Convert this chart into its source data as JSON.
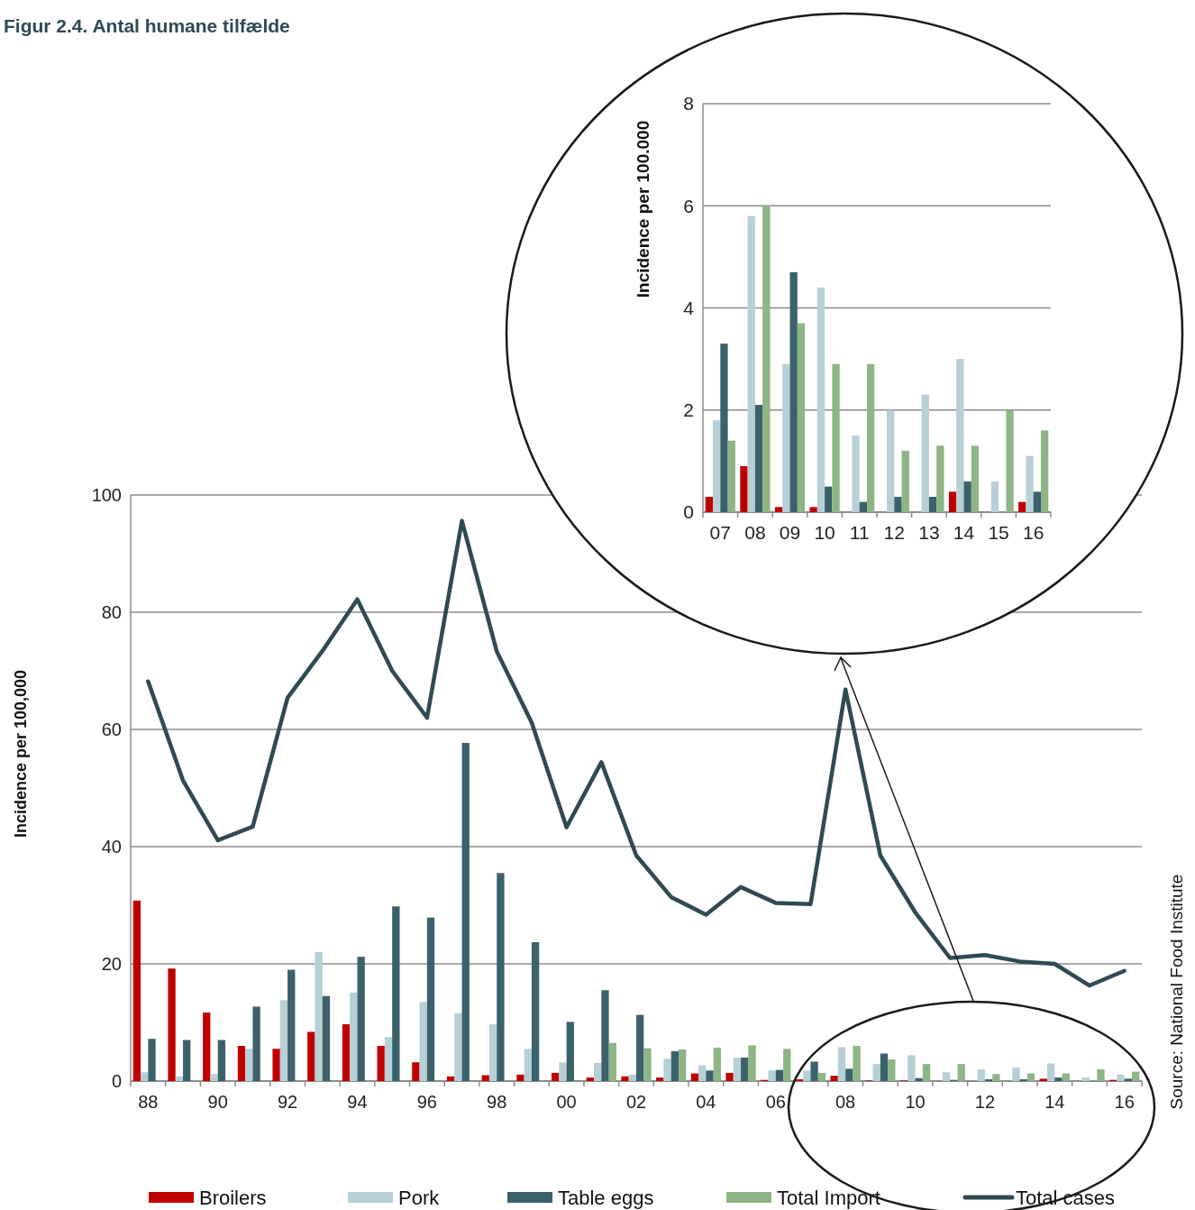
{
  "chart_data": [
    {
      "type": "bar",
      "title": "Figur 2.4. Antal humane tilfælde",
      "ylabel": "Incidence per 100,000",
      "annotations": [
        "Source: National Food Institute"
      ],
      "categories": [
        "88",
        null,
        "90",
        null,
        "92",
        null,
        "94",
        null,
        "96",
        null,
        "98",
        null,
        "00",
        null,
        "02",
        null,
        "04",
        null,
        "06",
        null,
        "08",
        null,
        "10",
        null,
        "12",
        null,
        "14",
        null,
        "16"
      ],
      "series": [
        {
          "name": "Broilers",
          "color": "#c00000",
          "values": [
            30.8,
            19.2,
            11.7,
            6,
            5.5,
            8.4,
            9.7,
            6,
            3.2,
            0.8,
            1,
            1.1,
            1.4,
            0.6,
            0.8,
            0.6,
            1.3,
            1.4,
            0.2,
            0.3,
            0.9,
            0.1,
            0.1,
            null,
            null,
            null,
            0.4,
            null,
            0.2
          ]
        },
        {
          "name": "Pork",
          "color": "#b7cfd6",
          "values": [
            1.5,
            0.8,
            1.2,
            5.5,
            13.8,
            22,
            15.1,
            7.5,
            13.5,
            11.6,
            9.7,
            5.5,
            3.2,
            3.1,
            1.1,
            3.8,
            2.7,
            4,
            1.8,
            1.8,
            5.8,
            2.9,
            4.4,
            1.5,
            2,
            2.3,
            3,
            0.6,
            1.1
          ]
        },
        {
          "name": "Table eggs",
          "color": "#3b616b",
          "values": [
            7.2,
            7,
            7,
            12.7,
            19,
            14.5,
            21.2,
            29.8,
            27.9,
            57.7,
            35.5,
            23.7,
            10.1,
            15.5,
            11.3,
            5.1,
            1.8,
            4,
            1.9,
            3.3,
            2.1,
            4.7,
            0.5,
            0.2,
            0.3,
            0.3,
            0.6,
            null,
            0.4
          ]
        },
        {
          "name": "Total Import",
          "color": "#8db585",
          "values": [
            null,
            null,
            null,
            null,
            null,
            null,
            null,
            null,
            null,
            null,
            null,
            null,
            null,
            6.5,
            5.6,
            5.4,
            5.7,
            6.1,
            5.5,
            1.4,
            6,
            3.7,
            2.9,
            2.9,
            1.2,
            1.3,
            1.3,
            2,
            1.6
          ]
        },
        {
          "name": "Total cases",
          "type": "line",
          "color": "#2f4a52",
          "values": [
            68.2,
            51.3,
            41.1,
            43.4,
            65.4,
            73.4,
            82.2,
            70,
            62,
            95.6,
            73.3,
            61.2,
            43.3,
            54.4,
            38.5,
            31.4,
            28.4,
            33.1,
            30.4,
            30.2,
            66.8,
            38.5,
            28.8,
            21,
            21.5,
            20.4,
            20,
            16.3,
            18.8
          ]
        }
      ],
      "ylim": [
        0,
        100
      ],
      "yticks": [
        0,
        20,
        40,
        60,
        80,
        100
      ],
      "grid": "y",
      "legend": "bottom",
      "marker": "none",
      "line_style": "solid"
    },
    {
      "type": "bar",
      "ylabel": "Incidence per 100.000",
      "categories": [
        "07",
        "08",
        "09",
        "10",
        "11",
        "12",
        "13",
        "14",
        "15",
        "16"
      ],
      "series": [
        {
          "color": "#c00000",
          "values": [
            0.3,
            0.9,
            0.1,
            0.1,
            null,
            null,
            null,
            0.4,
            null,
            0.2
          ]
        },
        {
          "color": "#b7cfd6",
          "values": [
            1.8,
            5.8,
            2.9,
            4.4,
            1.5,
            2,
            2.3,
            3,
            0.6,
            1.1
          ]
        },
        {
          "color": "#3b616b",
          "values": [
            3.3,
            2.1,
            4.7,
            0.5,
            0.2,
            0.3,
            0.3,
            0.6,
            null,
            0.4
          ]
        },
        {
          "color": "#8db585",
          "values": [
            1.4,
            6,
            3.7,
            2.9,
            2.9,
            1.2,
            1.3,
            1.3,
            2,
            1.6
          ]
        }
      ],
      "ylim": [
        0,
        8
      ],
      "yticks": [
        0,
        2,
        4,
        6,
        8
      ],
      "grid": "y"
    }
  ]
}
